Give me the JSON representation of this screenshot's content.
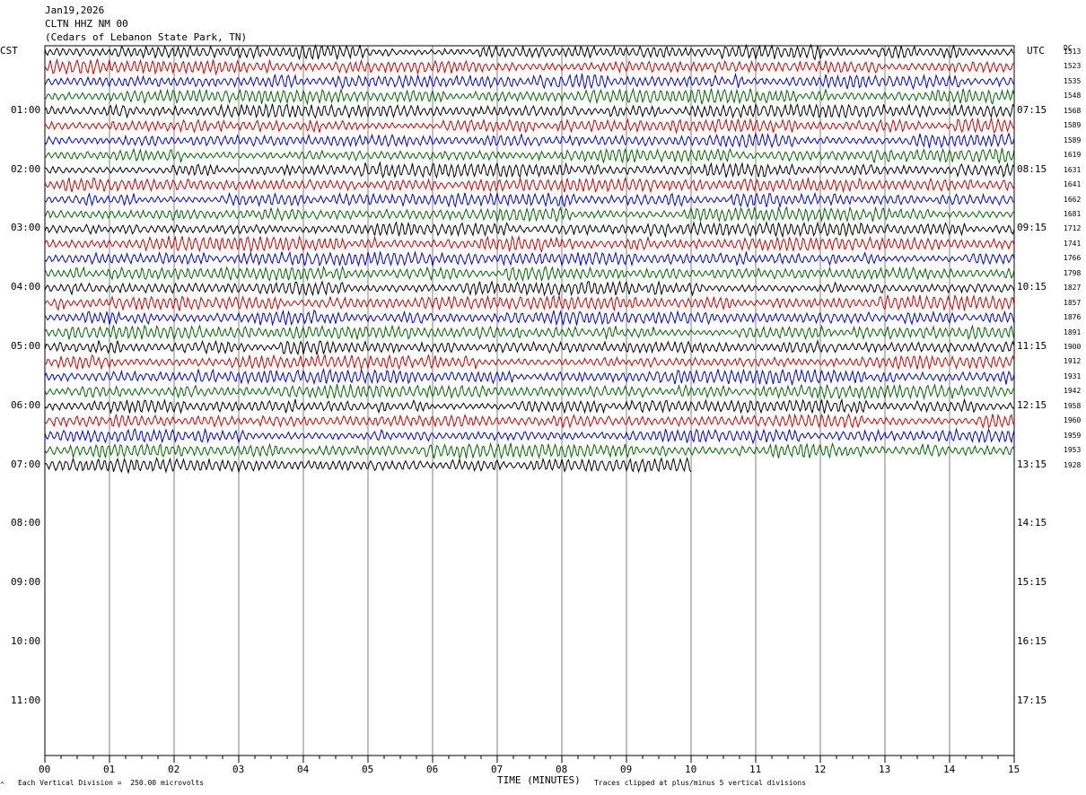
{
  "header": {
    "date": "Jan19,2026",
    "station": "CLTN HHZ NM 00",
    "location": "(Cedars of Lebanon State Park, TN)"
  },
  "left_tz": "CST",
  "right_tz": "UTC",
  "dc_header": "DC",
  "footer": {
    "vertical_div": "Each Vertical Division =  250.00 microvolts",
    "clip_note": "Traces clipped at plus/minus 5 vertical divisions",
    "corner_mark": "^"
  },
  "chart_data": {
    "type": "line",
    "xlabel": "TIME (MINUTES)",
    "x_ticks": [
      "00",
      "01",
      "02",
      "03",
      "04",
      "05",
      "06",
      "07",
      "08",
      "09",
      "10",
      "11",
      "12",
      "13",
      "14",
      "15"
    ],
    "xlim": [
      0,
      15
    ],
    "left_hour_labels": [
      "01:00",
      "02:00",
      "03:00",
      "04:00",
      "05:00",
      "06:00",
      "07:00",
      "08:00",
      "09:00",
      "10:00",
      "11:00"
    ],
    "right_hour_labels": [
      "07:15",
      "08:15",
      "09:15",
      "10:15",
      "11:15",
      "12:15",
      "13:15",
      "14:15",
      "15:15",
      "16:15",
      "17:15"
    ],
    "trace_colors": [
      "#000000",
      "#cc0000",
      "#0000cc",
      "#006600"
    ],
    "dc_offsets": [
      1513,
      1523,
      1535,
      1548,
      1568,
      1589,
      1589,
      1619,
      1631,
      1641,
      1662,
      1681,
      1712,
      1741,
      1766,
      1798,
      1827,
      1857,
      1876,
      1891,
      1900,
      1912,
      1931,
      1942,
      1958,
      1960,
      1959,
      1953,
      1928
    ],
    "last_trace_end_minute": 10,
    "grid": true
  }
}
